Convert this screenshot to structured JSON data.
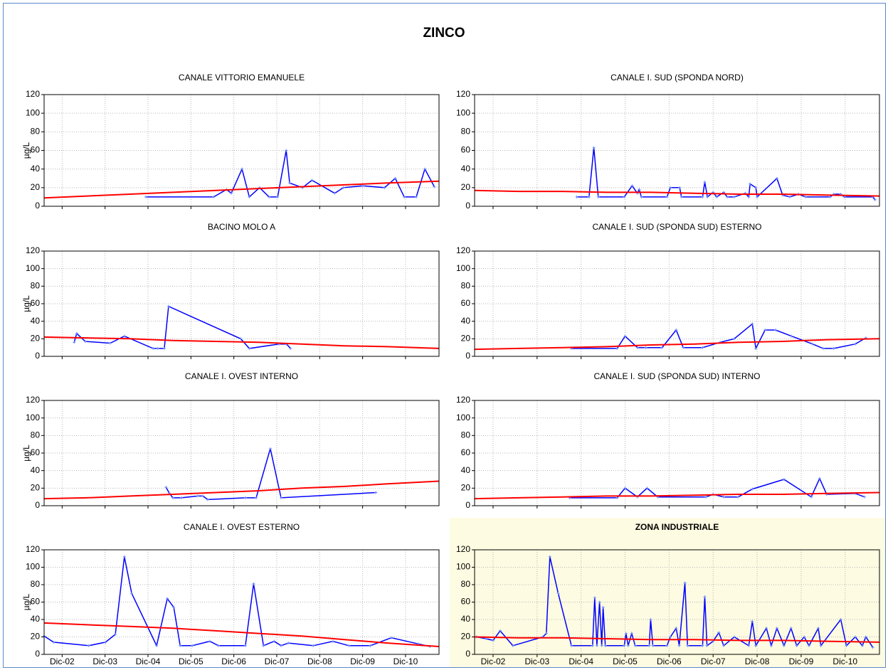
{
  "chart_data": [
    {
      "type": "line",
      "title": "ZINCO"
    },
    {
      "type": "line",
      "title": "CANALE VITTORIO EMANUELE",
      "ylabel": "µg/L",
      "ylim": [
        0,
        120
      ],
      "yticks": [
        0,
        20,
        40,
        60,
        80,
        100,
        120
      ],
      "xlim": [
        2002.5,
        2011.7
      ],
      "xticks": [
        2002.92,
        2003.92,
        2004.92,
        2005.92,
        2006.92,
        2007.92,
        2008.92,
        2009.92,
        2010.92
      ],
      "grid": true,
      "series": [
        {
          "color": "#0000ff",
          "x": [
            2004.87,
            2006.45,
            2006.75,
            2006.86,
            2007.11,
            2007.28,
            2007.52,
            2007.74,
            2007.94,
            2008.14,
            2008.22,
            2008.52,
            2008.74,
            2009.27,
            2009.47,
            2009.93,
            2010.43,
            2010.68,
            2010.89,
            2011.17,
            2011.37,
            2011.59
          ],
          "values": [
            10,
            10,
            18,
            14,
            40,
            10,
            20,
            10,
            10,
            60,
            25,
            20,
            28,
            14,
            20,
            22,
            20,
            30,
            10,
            10,
            40,
            21
          ]
        },
        {
          "color": "#ff0000",
          "x": [
            2002.5,
            2003.5,
            2004.5,
            2005.5,
            2006.5,
            2007.5,
            2008.5,
            2009.5,
            2010.5,
            2011.7
          ],
          "values": [
            9,
            11,
            13,
            15,
            17,
            19,
            21,
            23,
            25,
            27
          ]
        }
      ]
    },
    {
      "type": "line",
      "title": "CANALE I. SUD (SPONDA NORD)",
      "ylim": [
        0,
        120
      ],
      "yticks": [
        0,
        20,
        40,
        60,
        80,
        100,
        120
      ],
      "xlim": [
        2002.5,
        2011.7
      ],
      "xticks": [
        2002.92,
        2003.92,
        2004.92,
        2005.92,
        2006.92,
        2007.92,
        2008.92,
        2009.92,
        2010.92
      ],
      "grid": true,
      "series": [
        {
          "color": "#0000ff",
          "x": [
            2004.82,
            2005.1,
            2005.21,
            2005.31,
            2005.9,
            2006.08,
            2006.2,
            2006.24,
            2006.29,
            2006.87,
            2006.95,
            2007.16,
            2007.2,
            2007.68,
            2007.73,
            2007.79,
            2007.92,
            2008.0,
            2008.16,
            2008.24,
            2008.4,
            2008.65,
            2008.73,
            2008.76,
            2008.89,
            2008.92,
            2009.37,
            2009.5,
            2009.66,
            2009.86,
            2010.02,
            2010.58,
            2010.66,
            2010.82,
            2010.9,
            2011.55,
            2011.6
          ],
          "values": [
            10,
            10,
            63,
            10,
            10,
            22,
            14,
            18,
            10,
            10,
            20,
            20,
            10,
            10,
            26,
            10,
            15,
            10,
            15,
            10,
            10,
            14,
            10,
            24,
            20,
            10,
            30,
            12,
            10,
            13,
            10,
            10,
            13,
            13,
            10,
            10,
            7
          ]
        },
        {
          "color": "#ff0000",
          "x": [
            2002.5,
            2003.5,
            2004.5,
            2005.5,
            2006.5,
            2007.5,
            2008.5,
            2009.5,
            2010.5,
            2011.7
          ],
          "values": [
            17,
            16,
            16,
            15,
            15,
            14,
            13,
            13,
            12,
            11
          ]
        }
      ]
    },
    {
      "type": "line",
      "title": "BACINO MOLO A",
      "ylabel": "µg/L",
      "ylim": [
        0,
        120
      ],
      "yticks": [
        0,
        20,
        40,
        60,
        80,
        100,
        120
      ],
      "xlim": [
        2002.5,
        2011.7
      ],
      "xticks": [
        2002.92,
        2003.92,
        2004.92,
        2005.92,
        2006.92,
        2007.92,
        2008.92,
        2009.92,
        2010.92
      ],
      "grid": true,
      "series": [
        {
          "color": "#0000ff",
          "x": [
            2003.2,
            2003.26,
            2003.46,
            2004.04,
            2004.37,
            2005.04,
            2005.15,
            2005.3,
            2005.4,
            2007.08,
            2007.28,
            2007.97,
            2008.15,
            2008.24
          ],
          "values": [
            16,
            26,
            17,
            15,
            23,
            9,
            9,
            9,
            57,
            20,
            9,
            14,
            14,
            9
          ]
        },
        {
          "color": "#ff0000",
          "x": [
            2002.5,
            2003.5,
            2004.5,
            2005.5,
            2006.5,
            2007.5,
            2008.5,
            2009.5,
            2010.5,
            2011.7
          ],
          "values": [
            22,
            21,
            20,
            18,
            17,
            16,
            14,
            12,
            11,
            9
          ]
        }
      ]
    },
    {
      "type": "line",
      "title": "CANALE I. SUD (SPONDA SUD) ESTERNO",
      "ylim": [
        0,
        120
      ],
      "yticks": [
        0,
        20,
        40,
        60,
        80,
        100,
        120
      ],
      "xlim": [
        2002.5,
        2011.7
      ],
      "xticks": [
        2002.92,
        2003.92,
        2004.92,
        2005.92,
        2006.92,
        2007.92,
        2008.92,
        2009.92,
        2010.92
      ],
      "grid": true,
      "series": [
        {
          "color": "#0000ff",
          "x": [
            2004.7,
            2005.74,
            2005.92,
            2006.2,
            2006.39,
            2006.76,
            2007.08,
            2007.24,
            2007.68,
            2008.08,
            2008.4,
            2008.81,
            2008.89,
            2009.1,
            2009.34,
            2009.7,
            2010.18,
            2010.42,
            2010.66,
            2011.15,
            2011.39
          ],
          "values": [
            9,
            9,
            23,
            10,
            10,
            10,
            30,
            10,
            10,
            16,
            20,
            37,
            9,
            30,
            30,
            23,
            14,
            9,
            9,
            14,
            21
          ]
        },
        {
          "color": "#ff0000",
          "x": [
            2002.5,
            2003.5,
            2004.5,
            2005.5,
            2006.5,
            2007.5,
            2008.5,
            2009.5,
            2010.5,
            2011.7
          ],
          "values": [
            8,
            9,
            10,
            11,
            13,
            14,
            16,
            17,
            19,
            20
          ]
        }
      ]
    },
    {
      "type": "line",
      "title": "CANALE I. OVEST INTERNO",
      "ylabel": "µg/L",
      "ylim": [
        0,
        120
      ],
      "yticks": [
        0,
        20,
        40,
        60,
        80,
        100,
        120
      ],
      "xlim": [
        2002.5,
        2011.7
      ],
      "xticks": [
        2002.92,
        2003.92,
        2004.92,
        2005.92,
        2006.92,
        2007.92,
        2008.92,
        2009.92,
        2010.92
      ],
      "grid": true,
      "series": [
        {
          "color": "#0000ff",
          "x": [
            2005.34,
            2005.42,
            2005.5,
            2005.7,
            2006.08,
            2006.2,
            2006.31,
            2007.19,
            2007.44,
            2007.77,
            2008.02,
            2010.23
          ],
          "values": [
            21,
            14,
            9,
            9,
            11,
            11,
            7,
            9,
            9,
            65,
            9,
            15
          ]
        },
        {
          "color": "#ff0000",
          "x": [
            2002.5,
            2003.5,
            2004.5,
            2005.5,
            2006.5,
            2007.5,
            2008.5,
            2009.5,
            2010.5,
            2011.7
          ],
          "values": [
            8,
            9,
            11,
            13,
            15,
            17,
            20,
            22,
            25,
            28
          ]
        }
      ]
    },
    {
      "type": "line",
      "title": "CANALE I. SUD (SPONDA SUD) INTERNO",
      "ylim": [
        0,
        120
      ],
      "yticks": [
        0,
        20,
        40,
        60,
        80,
        100,
        120
      ],
      "xlim": [
        2002.5,
        2011.7
      ],
      "xticks": [
        2002.92,
        2003.92,
        2004.92,
        2005.92,
        2006.92,
        2007.92,
        2008.92,
        2009.92,
        2010.92
      ],
      "grid": true,
      "series": [
        {
          "color": "#0000ff",
          "x": [
            2004.66,
            2005.74,
            2005.92,
            2006.2,
            2006.42,
            2006.66,
            2007.76,
            2007.92,
            2008.16,
            2008.49,
            2008.81,
            2009.53,
            2010.15,
            2010.34,
            2010.5,
            2011.15,
            2011.36
          ],
          "values": [
            9,
            9,
            20,
            10,
            20,
            10,
            10,
            13,
            10,
            10,
            19,
            30,
            10,
            31,
            13,
            14,
            10
          ]
        },
        {
          "color": "#ff0000",
          "x": [
            2002.5,
            2003.5,
            2004.5,
            2005.5,
            2006.5,
            2007.5,
            2008.5,
            2009.5,
            2010.5,
            2011.7
          ],
          "values": [
            8,
            9,
            10,
            11,
            11,
            12,
            13,
            13,
            14,
            15
          ]
        }
      ]
    },
    {
      "type": "line",
      "title": "CANALE I. OVEST ESTERNO",
      "ylabel": "µg/L",
      "ylim": [
        0,
        120
      ],
      "yticks": [
        0,
        20,
        40,
        60,
        80,
        100,
        120
      ],
      "xlim": [
        2002.5,
        2011.7
      ],
      "xticks": [
        {
          "value": 2002.92,
          "label": "Dic-02"
        },
        {
          "value": 2003.92,
          "label": "Dic-03"
        },
        {
          "value": 2004.92,
          "label": "Dic-04"
        },
        {
          "value": 2005.92,
          "label": "Dic-05"
        },
        {
          "value": 2006.92,
          "label": "Dic-06"
        },
        {
          "value": 2007.92,
          "label": "Dic-07"
        },
        {
          "value": 2008.92,
          "label": "Dic-08"
        },
        {
          "value": 2009.92,
          "label": "Dic-09"
        },
        {
          "value": 2010.92,
          "label": "Dic-10"
        }
      ],
      "grid": true,
      "series": [
        {
          "color": "#0000ff",
          "x": [
            2002.5,
            2002.72,
            2003.54,
            2003.93,
            2004.16,
            2004.37,
            2004.54,
            2005.12,
            2005.37,
            2005.52,
            2005.67,
            2005.95,
            2006.36,
            2006.56,
            2007.19,
            2007.38,
            2007.61,
            2007.86,
            2008.02,
            2008.19,
            2008.77,
            2009.23,
            2009.6,
            2010.1,
            2010.59,
            2011.22,
            2011.49
          ],
          "values": [
            21,
            14,
            10,
            14,
            23,
            112,
            70,
            10,
            64,
            54,
            10,
            10,
            15,
            10,
            10,
            81,
            10,
            15,
            10,
            13,
            10,
            15,
            10,
            10,
            19,
            12,
            9
          ]
        },
        {
          "color": "#ff0000",
          "x": [
            2002.5,
            2003.5,
            2004.5,
            2005.5,
            2006.5,
            2007.5,
            2008.5,
            2009.5,
            2010.5,
            2011.7
          ],
          "values": [
            36,
            34,
            32,
            30,
            27,
            24,
            21,
            17,
            13,
            9
          ]
        }
      ]
    },
    {
      "type": "line",
      "title": "ZONA INDUSTRIALE",
      "background": "#fdfbe1",
      "ylim": [
        0,
        120
      ],
      "yticks": [
        0,
        20,
        40,
        60,
        80,
        100,
        120
      ],
      "xlim": [
        2002.5,
        2011.7
      ],
      "xticks": [
        {
          "value": 2002.92,
          "label": "Dic-02"
        },
        {
          "value": 2003.92,
          "label": "Dic-03"
        },
        {
          "value": 2004.92,
          "label": "Dic-04"
        },
        {
          "value": 2005.92,
          "label": "Dic-05"
        },
        {
          "value": 2006.92,
          "label": "Dic-06"
        },
        {
          "value": 2007.92,
          "label": "Dic-07"
        },
        {
          "value": 2008.92,
          "label": "Dic-08"
        },
        {
          "value": 2009.92,
          "label": "Dic-09"
        },
        {
          "value": 2010.92,
          "label": "Dic-10"
        }
      ],
      "grid": true,
      "series": [
        {
          "color": "#0000ff",
          "x": [
            2002.55,
            2002.76,
            2002.92,
            2003.08,
            2003.37,
            2004.05,
            2004.13,
            2004.21,
            2004.4,
            2004.7,
            2005.18,
            2005.23,
            2005.28,
            2005.34,
            2005.39,
            2005.42,
            2005.47,
            2005.9,
            2005.94,
            2005.99,
            2006.07,
            2006.15,
            2006.47,
            2006.5,
            2006.55,
            2006.87,
            2006.95,
            2007.08,
            2007.15,
            2007.28,
            2007.34,
            2007.68,
            2007.73,
            2007.78,
            2007.92,
            2008.05,
            2008.16,
            2008.4,
            2008.73,
            2008.81,
            2008.89,
            2009.13,
            2009.24,
            2009.37,
            2009.53,
            2009.69,
            2009.82,
            2009.99,
            2010.1,
            2010.31,
            2010.37,
            2010.82,
            2010.95,
            2011.15,
            2011.31,
            2011.39,
            2011.55
          ],
          "values": [
            20,
            18,
            16,
            27,
            10,
            20,
            24,
            112,
            70,
            10,
            10,
            65,
            10,
            60,
            10,
            54,
            10,
            10,
            24,
            10,
            24,
            10,
            10,
            40,
            10,
            10,
            20,
            30,
            10,
            82,
            10,
            10,
            66,
            10,
            15,
            25,
            10,
            20,
            10,
            38,
            10,
            30,
            10,
            30,
            10,
            30,
            10,
            20,
            10,
            30,
            10,
            40,
            10,
            20,
            10,
            20,
            8
          ]
        },
        {
          "color": "#ff0000",
          "x": [
            2002.5,
            2003.5,
            2004.5,
            2005.5,
            2006.5,
            2007.5,
            2008.5,
            2009.5,
            2010.5,
            2011.7
          ],
          "values": [
            20,
            19,
            19,
            18,
            17,
            17,
            16,
            16,
            15,
            14
          ]
        }
      ]
    }
  ]
}
